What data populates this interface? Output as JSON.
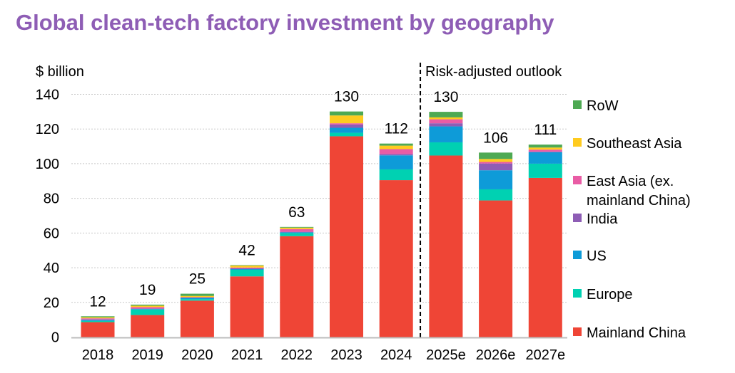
{
  "chart_data": {
    "type": "bar",
    "stacked": true,
    "title": "Global clean-tech factory investment by geography",
    "ylabel": "$ billion",
    "xlabel": "",
    "ylim": [
      0,
      140
    ],
    "yticks": [
      0,
      20,
      40,
      60,
      80,
      100,
      120,
      140
    ],
    "grid": true,
    "legend_position": "right",
    "annotation": "Risk-adjusted outlook",
    "categories": [
      "2018",
      "2019",
      "2020",
      "2021",
      "2022",
      "2023",
      "2024",
      "2025e",
      "2026e",
      "2027e"
    ],
    "totals": [
      12,
      19,
      25,
      42,
      63,
      130,
      112,
      130,
      106,
      111
    ],
    "series": [
      {
        "name": "Mainland China",
        "color": "#EF4536",
        "values": [
          8.6,
          12.7,
          21.0,
          35.0,
          58.2,
          115.8,
          90.5,
          104.7,
          78.8,
          91.8
        ]
      },
      {
        "name": "Europe",
        "color": "#00D1B2",
        "values": [
          0.7,
          3.2,
          0.9,
          3.8,
          1.8,
          2.0,
          6.2,
          7.6,
          6.4,
          8.2
        ]
      },
      {
        "name": "US",
        "color": "#0E9BD8",
        "values": [
          0.6,
          0.3,
          0.7,
          0.4,
          0.4,
          2.9,
          8.1,
          9.2,
          11.0,
          6.6
        ]
      },
      {
        "name": "India",
        "color": "#8E5DB5",
        "values": [
          0.3,
          0.3,
          0.2,
          0.5,
          0.3,
          1.9,
          0.8,
          1.8,
          3.9,
          0.4
        ]
      },
      {
        "name": "East Asia (ex. mainland China)",
        "label_lines": [
          "East Asia (ex.",
          "mainland China)"
        ],
        "color": "#E95CA5",
        "values": [
          0.6,
          0.8,
          0.2,
          0.4,
          1.6,
          0.7,
          2.8,
          2.3,
          0.9,
          1.1
        ]
      },
      {
        "name": "Southeast Asia",
        "color": "#FFCB1F",
        "values": [
          0.6,
          0.8,
          0.7,
          1.1,
          0.8,
          4.5,
          2.0,
          1.1,
          1.7,
          1.2
        ]
      },
      {
        "name": "RoW",
        "color": "#4EA953",
        "values": [
          0.6,
          0.6,
          1.3,
          0.3,
          0.4,
          2.3,
          1.2,
          3.2,
          3.7,
          1.7
        ]
      }
    ]
  }
}
